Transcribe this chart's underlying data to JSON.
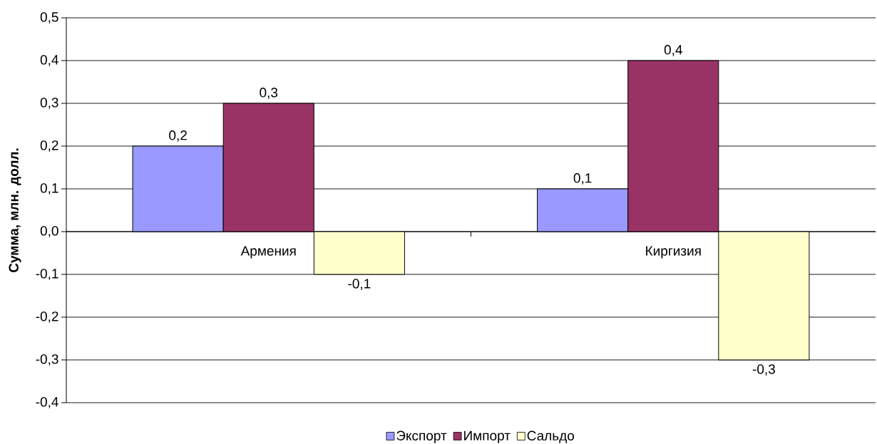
{
  "chart_data": {
    "type": "bar",
    "ylabel": "Сумма, млн. долл.",
    "categories": [
      "Армения",
      "Киргизия"
    ],
    "series": [
      {
        "name": "Экспорт",
        "color": "#9999ff",
        "values": [
          0.2,
          0.1
        ],
        "value_labels": [
          "0,2",
          "0,1"
        ]
      },
      {
        "name": "Импорт",
        "color": "#993366",
        "values": [
          0.3,
          0.4
        ],
        "value_labels": [
          "0,3",
          "0,4"
        ]
      },
      {
        "name": "Сальдо",
        "color": "#ffffcc",
        "values": [
          -0.1,
          -0.3
        ],
        "value_labels": [
          "-0,1",
          "-0,3"
        ]
      }
    ],
    "ylim": [
      -0.4,
      0.5
    ],
    "yticks": [
      {
        "value": -0.4,
        "label": "-0,4"
      },
      {
        "value": -0.3,
        "label": "-0,3"
      },
      {
        "value": -0.2,
        "label": "-0,2"
      },
      {
        "value": -0.1,
        "label": "-0,1"
      },
      {
        "value": 0,
        "label": "0,0"
      },
      {
        "value": 0.1,
        "label": "0,1"
      },
      {
        "value": 0.2,
        "label": "0,2"
      },
      {
        "value": 0.3,
        "label": "0,3"
      },
      {
        "value": 0.4,
        "label": "0,4"
      },
      {
        "value": 0.5,
        "label": "0,5"
      }
    ],
    "grid": "y",
    "legend": "bottom"
  }
}
